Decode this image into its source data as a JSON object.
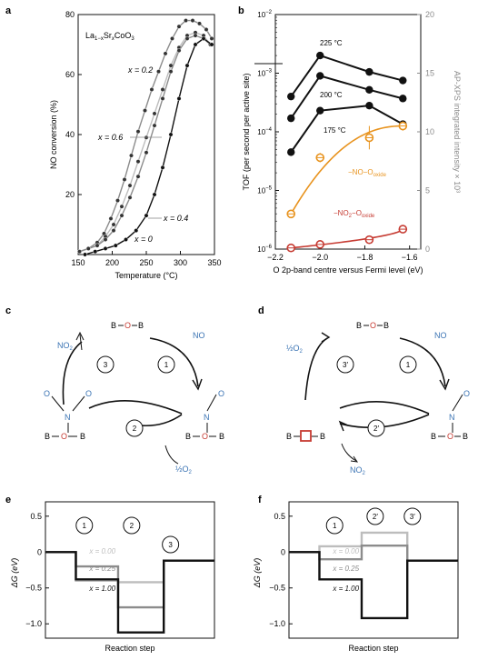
{
  "panel_labels": {
    "a": "a",
    "b": "b",
    "c": "c",
    "d": "d",
    "e": "e",
    "f": "f"
  },
  "colors": {
    "black": "#111111",
    "grey": "#8c8c8c",
    "lightgrey": "#bdbdbd",
    "orange": "#e8931e",
    "red": "#c63b32",
    "blue": "#3b74b4"
  },
  "chart_data": [
    {
      "id": "a",
      "type": "line",
      "title": "La1−xSrxCoO3",
      "compound": {
        "base": "La",
        "sub1": "1−x",
        "mid": "Sr",
        "sub2": "x",
        "end": "CoO",
        "sub3": "3"
      },
      "xlabel": "Temperature (°C)",
      "ylabel": "NO conversion (%)",
      "xlim": [
        150,
        350
      ],
      "ylim": [
        0,
        80
      ],
      "xticks": [
        "150",
        "200",
        "250",
        "300",
        "350"
      ],
      "yticks": [
        "20",
        "40",
        "60",
        "80"
      ],
      "series": [
        {
          "name": "x = 0.2",
          "color": "#8c8c8c",
          "x": [
            152,
            165,
            178,
            188,
            198,
            208,
            218,
            228,
            238,
            248,
            258,
            268,
            278,
            288,
            298,
            308,
            318,
            328,
            338,
            346
          ],
          "y": [
            1,
            2,
            4,
            7,
            12,
            18,
            25,
            33,
            41,
            48,
            55,
            61,
            67,
            72,
            76,
            78,
            78,
            77,
            75,
            72
          ]
        },
        {
          "name": "x = 0.6",
          "color": "#bdbdbd",
          "x": [
            152,
            165,
            178,
            190,
            202,
            214,
            226,
            238,
            250,
            262,
            274,
            286,
            298,
            310,
            322,
            334,
            344
          ],
          "y": [
            1,
            2,
            3,
            6,
            10,
            16,
            23,
            31,
            39,
            47,
            55,
            63,
            69,
            73,
            74,
            73,
            70
          ]
        },
        {
          "name": "x = 0.4",
          "color": "#8c8c8c",
          "x": [
            152,
            165,
            178,
            190,
            202,
            214,
            226,
            238,
            250,
            262,
            274,
            286,
            298,
            310,
            322,
            334,
            344
          ],
          "y": [
            1,
            2,
            3,
            5,
            8,
            13,
            19,
            26,
            34,
            43,
            52,
            61,
            68,
            72,
            73,
            72,
            70
          ]
        },
        {
          "name": "x = 0",
          "color": "#111111",
          "x": [
            160,
            175,
            190,
            205,
            220,
            235,
            250,
            262,
            274,
            286,
            298,
            310,
            322,
            334,
            346
          ],
          "y": [
            0,
            1,
            2,
            3,
            5,
            8,
            13,
            20,
            29,
            40,
            52,
            63,
            70,
            72,
            70
          ]
        }
      ],
      "labels": {
        "x02": "x = 0.2",
        "x06": "x = 0.6",
        "x04": "x = 0.4",
        "x0": "x = 0"
      }
    },
    {
      "id": "b",
      "type": "scatter",
      "xlabel": "O 2p-band centre versus Fermi level (eV)",
      "ylabel": "TOF (per second per active site)",
      "y2label": "AP-XPS integrated intensity × 10³",
      "xlim": [
        -2.2,
        -1.55
      ],
      "xticks": [
        "−2.2",
        "−2.0",
        "−1.8",
        "−1.6"
      ],
      "ylim_log": [
        -6,
        -2
      ],
      "yticks": [
        "10−6",
        "10−5",
        "10−4",
        "10−3",
        "10−2"
      ],
      "y2lim": [
        0,
        20
      ],
      "y2ticks": [
        "0",
        "5",
        "10",
        "15",
        "20"
      ],
      "x": [
        -2.13,
        -2.0,
        -1.78,
        -1.63
      ],
      "tof_series": [
        {
          "name": "225 °C",
          "values": [
            0.0004,
            0.002,
            0.00105,
            0.00075
          ]
        },
        {
          "name": "200 °C",
          "values": [
            0.00017,
            0.0009,
            0.00052,
            0.00037
          ]
        },
        {
          "name": "175 °C",
          "values": [
            4.5e-05,
            0.00023,
            0.00028,
            0.000135
          ]
        }
      ],
      "xps_series": [
        {
          "name": "−NO−Ooxide",
          "label_main": "−NO−O",
          "label_sub": "oxide",
          "color": "#e8931e",
          "values": [
            3.0,
            7.8,
            9.5,
            10.5
          ],
          "errors": [
            0.3,
            0.4,
            1.0,
            0.4
          ]
        },
        {
          "name": "−NO2−Ooxide",
          "label_main": "−NO",
          "label_sub2": "2",
          "label_main2": "−O",
          "label_sub": "oxide",
          "color": "#c63b32",
          "values": [
            0.1,
            0.4,
            0.8,
            1.7
          ],
          "errors": [
            0.1,
            0.2,
            0.2,
            0.3
          ]
        }
      ]
    }
  ],
  "cycle_c": {
    "top_species": "B−O−B",
    "step1": "1",
    "step2": "2",
    "step3": "3",
    "no_label": "NO",
    "no2_label": "NO",
    "no2_sub": "2",
    "o2_label": "½O",
    "o2_sub": "2",
    "n_label": "N",
    "o_label": "O",
    "b_label": "B"
  },
  "cycle_d": {
    "step1": "1",
    "step2": "2′",
    "step3": "3′",
    "no_label": "NO",
    "o2_label": "½O",
    "o2_sub": "2",
    "no2_label": "NO",
    "no2_sub": "2",
    "n_label": "N",
    "o_label": "O",
    "b_label": "B"
  },
  "energy_e": {
    "ylabel": "ΔG (eV)",
    "xlabel": "Reaction step",
    "yticks": [
      "0.5",
      "0",
      "−0.5",
      "−1.0"
    ],
    "ylim": [
      -1.2,
      0.7
    ],
    "steps": [
      "1",
      "2",
      "3"
    ],
    "series": [
      {
        "name": "x = 0.00",
        "color": "#bdbdbd",
        "levels": [
          0,
          -0.4,
          -0.42,
          -0.12
        ]
      },
      {
        "name": "x = 0.25",
        "color": "#8c8c8c",
        "levels": [
          0,
          -0.2,
          -0.77,
          -0.12
        ]
      },
      {
        "name": "x = 1.00",
        "color": "#111111",
        "levels": [
          0,
          -0.38,
          -1.12,
          -0.12
        ]
      }
    ],
    "labels": {
      "s0": "x = 0.00",
      "s1": "x = 0.25",
      "s2": "x = 1.00"
    },
    "gentle_top": [
      0.05,
      0.05
    ]
  },
  "energy_f": {
    "ylabel": "ΔG (eV)",
    "xlabel": "Reaction step",
    "yticks": [
      "0.5",
      "0",
      "−0.5",
      "−1.0"
    ],
    "ylim": [
      -1.2,
      0.7
    ],
    "steps": [
      "1",
      "2′",
      "3′"
    ],
    "series": [
      {
        "name": "x = 0.00",
        "color": "#bdbdbd",
        "levels": [
          0,
          0.08,
          0.27,
          -0.12
        ]
      },
      {
        "name": "x = 0.25",
        "color": "#8c8c8c",
        "levels": [
          0,
          -0.1,
          0.09,
          -0.12
        ]
      },
      {
        "name": "x = 1.00",
        "color": "#111111",
        "levels": [
          0,
          -0.38,
          -0.92,
          -0.12
        ]
      }
    ],
    "labels": {
      "s0": "x = 0.00",
      "s1": "x = 0.25",
      "s2": "x = 1.00"
    }
  }
}
